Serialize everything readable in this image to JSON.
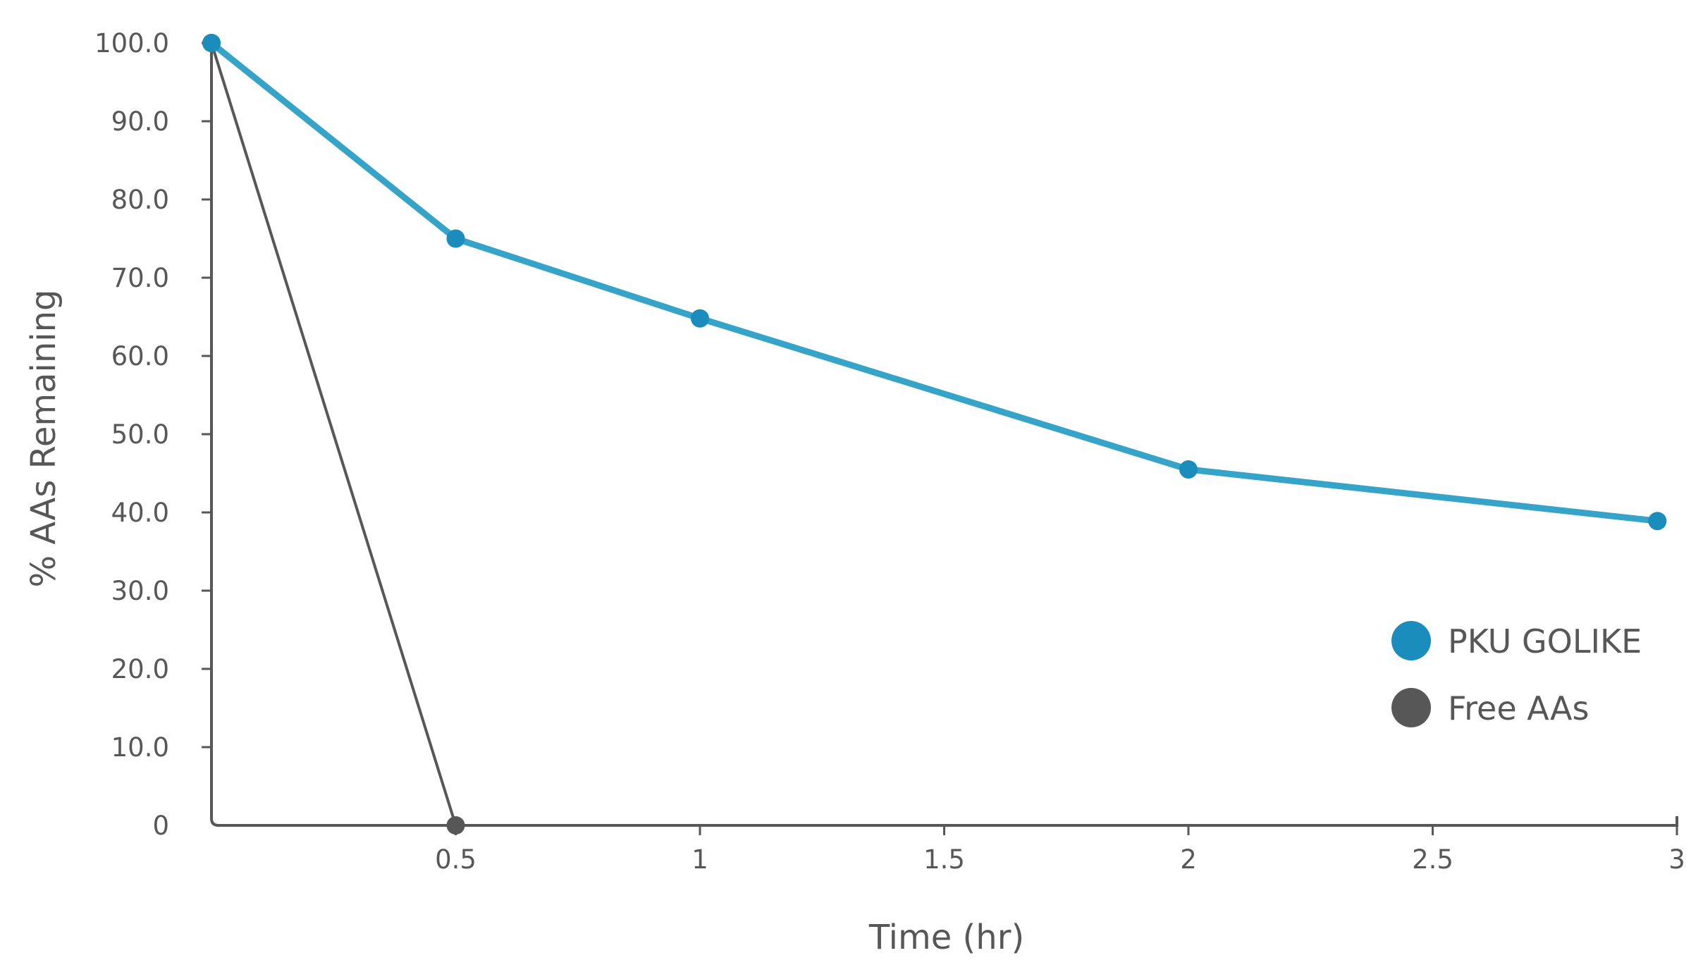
{
  "chart_data": {
    "type": "line",
    "title": "",
    "xlabel": "Time (hr)",
    "ylabel": "% AAs Remaining",
    "xlim": [
      0,
      3
    ],
    "ylim": [
      0,
      100
    ],
    "x_ticks": [
      {
        "value": 0.5,
        "label": "0.5"
      },
      {
        "value": 1,
        "label": "1"
      },
      {
        "value": 1.5,
        "label": "1.5"
      },
      {
        "value": 2,
        "label": "2"
      },
      {
        "value": 2.5,
        "label": "2.5"
      },
      {
        "value": 3,
        "label": "3"
      }
    ],
    "y_ticks": [
      {
        "value": 0,
        "label": "0"
      },
      {
        "value": 10,
        "label": "10.0"
      },
      {
        "value": 20,
        "label": "20.0"
      },
      {
        "value": 30,
        "label": "30.0"
      },
      {
        "value": 40,
        "label": "40.0"
      },
      {
        "value": 50,
        "label": "50.0"
      },
      {
        "value": 60,
        "label": "60.0"
      },
      {
        "value": 70,
        "label": "70.0"
      },
      {
        "value": 80,
        "label": "80.0"
      },
      {
        "value": 90,
        "label": "90.0"
      },
      {
        "value": 100,
        "label": "100.0"
      }
    ],
    "grid": false,
    "legend_position": "bottom-right",
    "series": [
      {
        "name": "PKU GOLIKE",
        "color": "#36a3c9",
        "marker_color": "#1b8dbd",
        "x": [
          0,
          0.5,
          1,
          2,
          2.96
        ],
        "values": [
          100,
          75,
          64.8,
          45.5,
          38.9
        ]
      },
      {
        "name": "Free AAs",
        "color": "#575757",
        "marker_color": "#575757",
        "x": [
          0,
          0.5
        ],
        "values": [
          100,
          0
        ]
      }
    ]
  }
}
